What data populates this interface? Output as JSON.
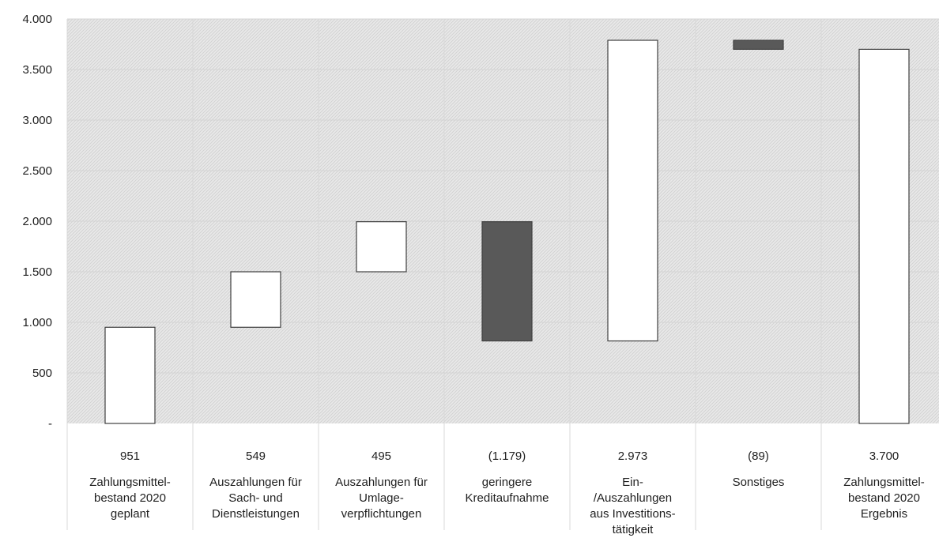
{
  "chart_data": {
    "type": "bar",
    "subtype": "waterfall",
    "title": "",
    "xlabel": "",
    "ylabel": "",
    "ylim": [
      0,
      4000
    ],
    "y_ticks": [
      "-",
      "500",
      "1.000",
      "1.500",
      "2.000",
      "2.500",
      "3.000",
      "3.500",
      "4.000"
    ],
    "grid": true,
    "legend": "none",
    "colors": {
      "increase": "#ffffff",
      "decrease": "#595959",
      "edge": "#404040",
      "plot_bg": "#e6e6e6"
    },
    "categories": [
      {
        "label": "Zahlungsmittel-\nbestand 2020\ngeplant",
        "value_label": "951",
        "start": 0,
        "end": 951,
        "kind": "total"
      },
      {
        "label": "Auszahlungen für\nSach- und\nDienstleistungen",
        "value_label": "549",
        "start": 951,
        "end": 1500,
        "kind": "increase"
      },
      {
        "label": "Auszahlungen für\nUmlage-\nverpflichtungen",
        "value_label": "495",
        "start": 1500,
        "end": 1995,
        "kind": "increase"
      },
      {
        "label": "geringere\nKreditaufnahme",
        "value_label": "(1.179)",
        "start": 1995,
        "end": 816,
        "kind": "decrease"
      },
      {
        "label": "Ein-\n/Auszahlungen\naus Investitions-\ntätigkeit",
        "value_label": "2.973",
        "start": 816,
        "end": 3789,
        "kind": "increase"
      },
      {
        "label": "Sonstiges",
        "value_label": "(89)",
        "start": 3789,
        "end": 3700,
        "kind": "decrease"
      },
      {
        "label": "Zahlungsmittel-\nbestand 2020\nErgebnis",
        "value_label": "3.700",
        "start": 0,
        "end": 3700,
        "kind": "total"
      }
    ]
  }
}
